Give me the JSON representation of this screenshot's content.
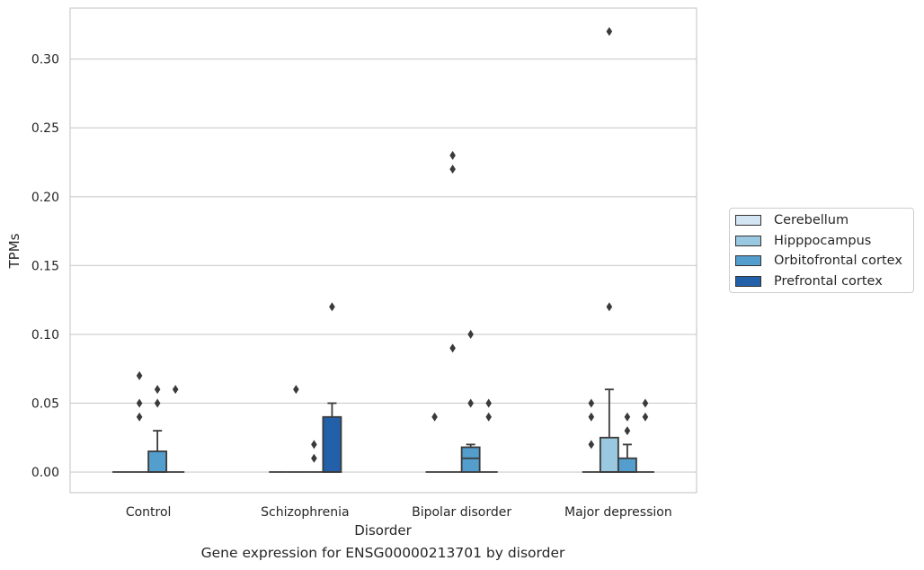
{
  "caption": "Gene expression for ENSG00000213701 by disorder",
  "legend": {
    "items": [
      {
        "label": "Cerebellum",
        "color": "#d3e4f3"
      },
      {
        "label": "Hipppocampus",
        "color": "#9ac8e0"
      },
      {
        "label": "Orbitofrontal cortex",
        "color": "#539ecd"
      },
      {
        "label": "Prefrontal cortex",
        "color": "#2260a9"
      }
    ]
  },
  "chart_data": {
    "type": "box",
    "xlabel": "Disorder",
    "ylabel": "TPMs",
    "ylim": [
      -0.015,
      0.337
    ],
    "yticks": [
      "0.00",
      "0.05",
      "0.10",
      "0.15",
      "0.20",
      "0.25",
      "0.30"
    ],
    "grid": "horizontal",
    "legend_position": "right",
    "categories": [
      "Control",
      "Schizophrenia",
      "Bipolar disorder",
      "Major depression"
    ],
    "series": [
      {
        "name": "Cerebellum",
        "color": "#d3e4f3",
        "boxes": [
          {
            "q1": 0,
            "median": 0,
            "q3": 0,
            "whisker_low": 0,
            "whisker_high": 0,
            "outliers": []
          },
          {
            "q1": 0,
            "median": 0,
            "q3": 0,
            "whisker_low": 0,
            "whisker_high": 0,
            "outliers": []
          },
          {
            "q1": 0,
            "median": 0,
            "q3": 0,
            "whisker_low": 0,
            "whisker_high": 0,
            "outliers": [
              0.04
            ]
          },
          {
            "q1": 0,
            "median": 0,
            "q3": 0,
            "whisker_low": 0,
            "whisker_high": 0,
            "outliers": [
              0.02,
              0.04,
              0.05
            ]
          }
        ]
      },
      {
        "name": "Hipppocampus",
        "color": "#9ac8e0",
        "boxes": [
          {
            "q1": 0,
            "median": 0,
            "q3": 0,
            "whisker_low": 0,
            "whisker_high": 0,
            "outliers": [
              0.04,
              0.05,
              0.07
            ]
          },
          {
            "q1": 0,
            "median": 0,
            "q3": 0,
            "whisker_low": 0,
            "whisker_high": 0,
            "outliers": [
              0.06
            ]
          },
          {
            "q1": 0,
            "median": 0,
            "q3": 0,
            "whisker_low": 0,
            "whisker_high": 0,
            "outliers": [
              0.09,
              0.22,
              0.23
            ]
          },
          {
            "q1": 0,
            "median": 0,
            "q3": 0.025,
            "whisker_low": 0,
            "whisker_high": 0.06,
            "outliers": [
              0.12,
              0.32
            ]
          }
        ]
      },
      {
        "name": "Orbitofrontal cortex",
        "color": "#539ecd",
        "boxes": [
          {
            "q1": 0,
            "median": 0,
            "q3": 0.015,
            "whisker_low": 0,
            "whisker_high": 0.03,
            "outliers": [
              0.05,
              0.06
            ]
          },
          {
            "q1": 0,
            "median": 0,
            "q3": 0,
            "whisker_low": 0,
            "whisker_high": 0,
            "outliers": [
              0.01,
              0.02
            ]
          },
          {
            "q1": 0,
            "median": 0.01,
            "q3": 0.018,
            "whisker_low": 0,
            "whisker_high": 0.02,
            "outliers": [
              0.05,
              0.1
            ]
          },
          {
            "q1": 0,
            "median": 0,
            "q3": 0.01,
            "whisker_low": 0,
            "whisker_high": 0.02,
            "outliers": [
              0.03,
              0.04
            ]
          }
        ]
      },
      {
        "name": "Prefrontal cortex",
        "color": "#2260a9",
        "boxes": [
          {
            "q1": 0,
            "median": 0,
            "q3": 0,
            "whisker_low": 0,
            "whisker_high": 0,
            "outliers": [
              0.06
            ]
          },
          {
            "q1": 0,
            "median": 0,
            "q3": 0.04,
            "whisker_low": 0,
            "whisker_high": 0.05,
            "outliers": [
              0.12
            ]
          },
          {
            "q1": 0,
            "median": 0,
            "q3": 0,
            "whisker_low": 0,
            "whisker_high": 0,
            "outliers": [
              0.04,
              0.05
            ]
          },
          {
            "q1": 0,
            "median": 0,
            "q3": 0,
            "whisker_low": 0,
            "whisker_high": 0,
            "outliers": [
              0.04,
              0.05
            ]
          }
        ]
      }
    ]
  }
}
